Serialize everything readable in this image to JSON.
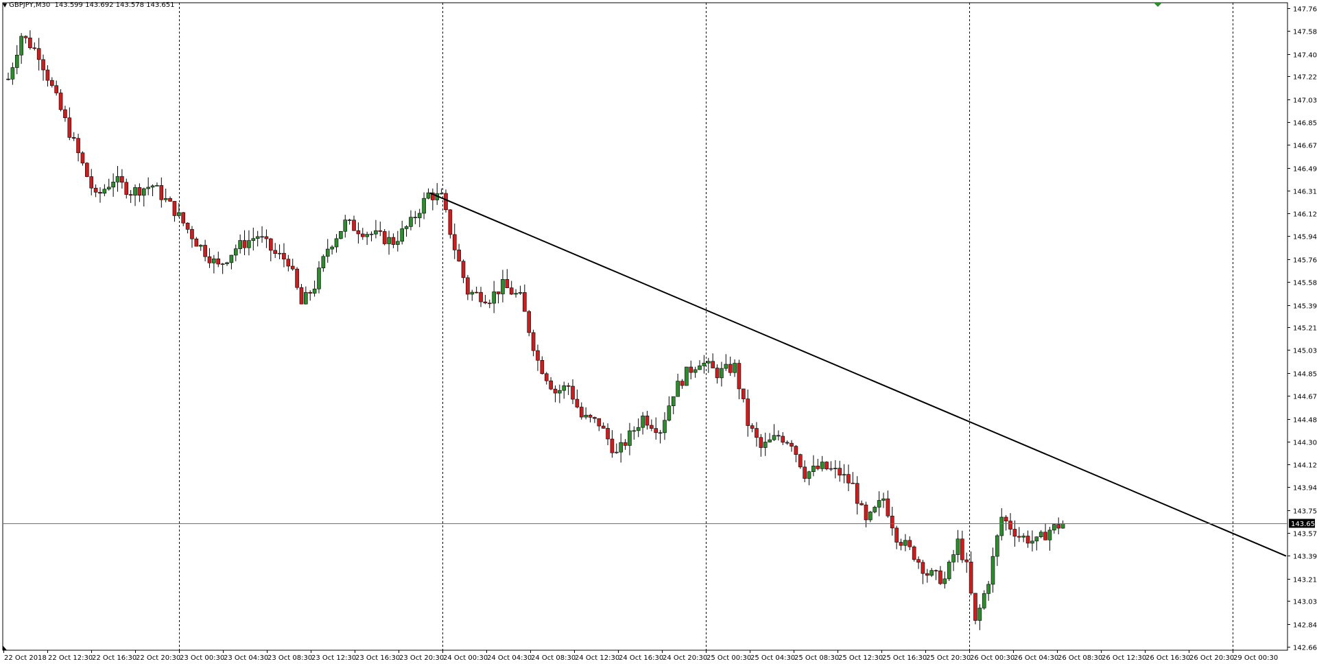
{
  "window": {
    "symbol": "GBPJPY",
    "timeframe": "M30",
    "ohlc": "143.599 143.692 143.578 143.651",
    "header_text": "GBPJPY,M30  143.599 143.692 143.578 143.651"
  },
  "colors": {
    "bull": "#2e8b2e",
    "bear": "#cc1e1e",
    "wick": "#000000",
    "grid": "#000000",
    "price_line": "#2e9b2e",
    "price_box": "#000000",
    "price_box_text": "#ffffff",
    "trendline": "#000000",
    "marker": "#2e8b2e"
  },
  "chart_data": {
    "type": "candlestick",
    "symbol": "GBPJPY",
    "timeframe": "M30",
    "y_ticks": [
      "147.765",
      "147.585",
      "147.400",
      "147.220",
      "147.035",
      "146.855",
      "146.675",
      "146.490",
      "146.310",
      "146.125",
      "145.945",
      "145.760",
      "145.580",
      "145.395",
      "145.215",
      "145.035",
      "144.850",
      "144.670",
      "144.485",
      "144.305",
      "144.120",
      "143.940",
      "143.755",
      "143.575",
      "143.395",
      "143.210",
      "143.030",
      "142.845",
      "142.665"
    ],
    "ylim": [
      142.665,
      147.765
    ],
    "x_ticks": [
      "22 Oct 2018",
      "22 Oct 12:30",
      "22 Oct 16:30",
      "22 Oct 20:30",
      "23 Oct 00:30",
      "23 Oct 04:30",
      "23 Oct 08:30",
      "23 Oct 12:30",
      "23 Oct 16:30",
      "23 Oct 20:30",
      "24 Oct 00:30",
      "24 Oct 04:30",
      "24 Oct 08:30",
      "24 Oct 12:30",
      "24 Oct 16:30",
      "24 Oct 20:30",
      "25 Oct 00:30",
      "25 Oct 04:30",
      "25 Oct 08:30",
      "25 Oct 12:30",
      "25 Oct 16:30",
      "25 Oct 20:30",
      "26 Oct 00:30",
      "26 Oct 04:30",
      "26 Oct 08:30",
      "26 Oct 12:30",
      "26 Oct 16:30",
      "26 Oct 20:30",
      "29 Oct 00:30"
    ],
    "day_separators": [
      "23 Oct 00:30",
      "24 Oct 00:30",
      "25 Oct 00:30",
      "26 Oct 00:30",
      "29 Oct 00:30"
    ],
    "current_price": "143.651",
    "trendline": {
      "from_price": 146.29,
      "to_price": 143.39
    },
    "key_points": [
      {
        "idx": 0,
        "p": 147.2
      },
      {
        "idx": 3,
        "p": 147.55
      },
      {
        "idx": 7,
        "p": 147.4
      },
      {
        "idx": 12,
        "p": 146.95
      },
      {
        "idx": 16,
        "p": 146.6
      },
      {
        "idx": 20,
        "p": 146.25
      },
      {
        "idx": 24,
        "p": 146.4
      },
      {
        "idx": 28,
        "p": 146.3
      },
      {
        "idx": 33,
        "p": 146.35
      },
      {
        "idx": 38,
        "p": 146.15
      },
      {
        "idx": 43,
        "p": 145.9
      },
      {
        "idx": 48,
        "p": 145.7
      },
      {
        "idx": 52,
        "p": 145.85
      },
      {
        "idx": 57,
        "p": 145.95
      },
      {
        "idx": 61,
        "p": 145.8
      },
      {
        "idx": 64,
        "p": 145.75
      },
      {
        "idx": 67,
        "p": 145.4
      },
      {
        "idx": 70,
        "p": 145.55
      },
      {
        "idx": 73,
        "p": 145.85
      },
      {
        "idx": 77,
        "p": 146.05
      },
      {
        "idx": 80,
        "p": 146.0
      },
      {
        "idx": 84,
        "p": 145.95
      },
      {
        "idx": 88,
        "p": 145.9
      },
      {
        "idx": 92,
        "p": 146.05
      },
      {
        "idx": 96,
        "p": 146.28
      },
      {
        "idx": 99,
        "p": 146.25
      },
      {
        "idx": 102,
        "p": 145.85
      },
      {
        "idx": 105,
        "p": 145.5
      },
      {
        "idx": 110,
        "p": 145.45
      },
      {
        "idx": 113,
        "p": 145.55
      },
      {
        "idx": 117,
        "p": 145.45
      },
      {
        "idx": 121,
        "p": 144.95
      },
      {
        "idx": 125,
        "p": 144.7
      },
      {
        "idx": 128,
        "p": 144.75
      },
      {
        "idx": 131,
        "p": 144.5
      },
      {
        "idx": 135,
        "p": 144.45
      },
      {
        "idx": 139,
        "p": 144.2
      },
      {
        "idx": 142,
        "p": 144.35
      },
      {
        "idx": 145,
        "p": 144.5
      },
      {
        "idx": 149,
        "p": 144.4
      },
      {
        "idx": 152,
        "p": 144.7
      },
      {
        "idx": 155,
        "p": 144.85
      },
      {
        "idx": 158,
        "p": 144.95
      },
      {
        "idx": 162,
        "p": 144.85
      },
      {
        "idx": 166,
        "p": 144.9
      },
      {
        "idx": 169,
        "p": 144.45
      },
      {
        "idx": 172,
        "p": 144.25
      },
      {
        "idx": 176,
        "p": 144.35
      },
      {
        "idx": 179,
        "p": 144.3
      },
      {
        "idx": 182,
        "p": 144.05
      },
      {
        "idx": 186,
        "p": 144.1
      },
      {
        "idx": 190,
        "p": 144.05
      },
      {
        "idx": 193,
        "p": 143.95
      },
      {
        "idx": 196,
        "p": 143.65
      },
      {
        "idx": 200,
        "p": 143.85
      },
      {
        "idx": 203,
        "p": 143.55
      },
      {
        "idx": 207,
        "p": 143.4
      },
      {
        "idx": 210,
        "p": 143.25
      },
      {
        "idx": 214,
        "p": 143.2
      },
      {
        "idx": 217,
        "p": 143.5
      },
      {
        "idx": 219,
        "p": 143.3
      },
      {
        "idx": 221,
        "p": 142.85
      },
      {
        "idx": 224,
        "p": 143.2
      },
      {
        "idx": 227,
        "p": 143.7
      },
      {
        "idx": 231,
        "p": 143.55
      },
      {
        "idx": 235,
        "p": 143.5
      },
      {
        "idx": 238,
        "p": 143.6
      },
      {
        "idx": 241,
        "p": 143.65
      }
    ]
  }
}
